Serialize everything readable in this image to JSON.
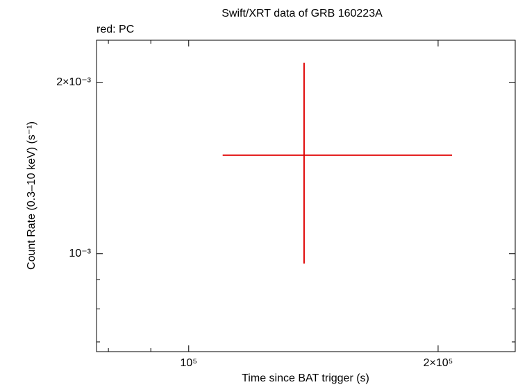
{
  "chart_data": {
    "type": "scatter",
    "title": "Swift/XRT data of GRB 160223A",
    "subtitle": "red: PC",
    "x_label": "Time since BAT trigger (s)",
    "y_label": "Count Rate (0.3–10 keV) (s⁻¹)",
    "log_x": true,
    "log_y": true,
    "xlim": [
      77400,
      247800
    ],
    "ylim": [
      0.000673,
      0.00237
    ],
    "xticks": [
      {
        "value": 100000,
        "label": "10⁵"
      },
      {
        "value": 200000,
        "label": "2×10⁵"
      }
    ],
    "xminor_ticks": [
      80000,
      90000
    ],
    "yticks": [
      {
        "value": 0.001,
        "label": "10⁻³"
      },
      {
        "value": 0.002,
        "label": "2×10⁻³"
      }
    ],
    "yminor_ticks": [
      0.0007,
      0.0008,
      0.0009
    ],
    "series": [
      {
        "color": "#e00000",
        "x": [
          137800
        ],
        "y": [
          0.001489
        ],
        "xerr_minus": [
          27900
        ],
        "xerr_plus": [
          70100
        ],
        "yerr_minus": [
          0.000528
        ],
        "yerr_plus": [
          0.000674
        ]
      }
    ]
  }
}
